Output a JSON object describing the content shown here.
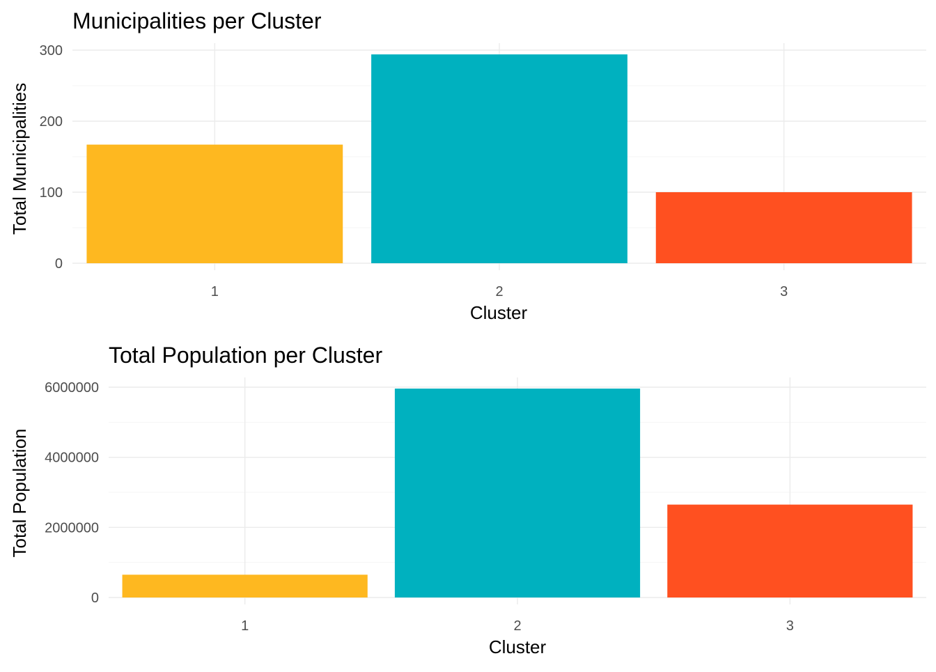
{
  "chart_data": [
    {
      "type": "bar",
      "title": "Municipalities per Cluster",
      "xlabel": "Cluster",
      "ylabel": "Total Municipalities",
      "categories": [
        "1",
        "2",
        "3"
      ],
      "values": [
        167,
        294,
        100
      ],
      "colors": [
        "#FEB820",
        "#00B1BF",
        "#FF5020"
      ],
      "ylim": [
        0,
        300
      ],
      "yticks": [
        0,
        100,
        200,
        300
      ],
      "ytick_labels": [
        "0",
        "100",
        "200",
        "300"
      ],
      "grid": true,
      "legend": "none"
    },
    {
      "type": "bar",
      "title": "Total Population per Cluster",
      "xlabel": "Cluster",
      "ylabel": "Total Population",
      "categories": [
        "1",
        "2",
        "3"
      ],
      "values": [
        650000,
        5960000,
        2650000
      ],
      "colors": [
        "#FEB820",
        "#00B1BF",
        "#FF5020"
      ],
      "ylim": [
        0,
        6000000
      ],
      "yticks": [
        0,
        2000000,
        4000000,
        6000000
      ],
      "ytick_labels": [
        "0",
        "2000000",
        "4000000",
        "6000000"
      ],
      "grid": true,
      "legend": "none"
    }
  ]
}
